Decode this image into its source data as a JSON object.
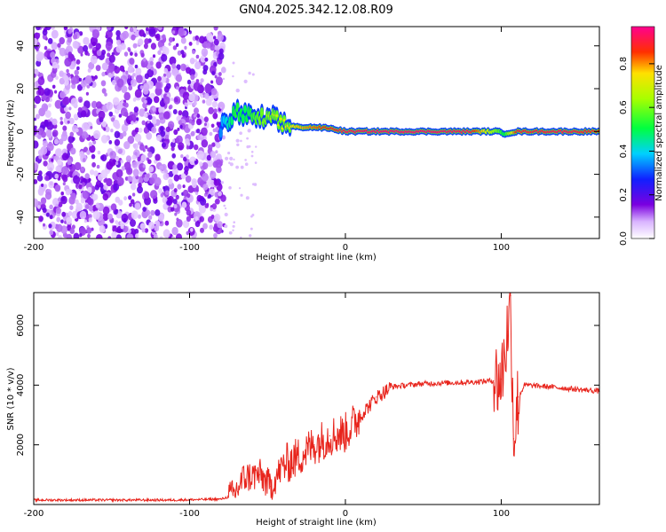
{
  "figure_title": "GN04.2025.342.12.08.R09",
  "chart_data": [
    {
      "type": "heatmap",
      "title": "GN04.2025.342.12.08.R09",
      "xlabel": "Height of straight line (km)",
      "ylabel": "Frequency (Hz)",
      "xlim": [
        -200,
        163
      ],
      "ylim": [
        -50,
        49
      ],
      "x_ticks": [
        -200,
        -100,
        0,
        100
      ],
      "x_tick_labels": [
        "-200",
        "-100",
        "0",
        "100"
      ],
      "y_ticks": [
        -40,
        -20,
        0,
        20,
        40
      ],
      "y_tick_labels": [
        "-40",
        "-20",
        "0",
        "20",
        "40"
      ],
      "noise_region_x": [
        -200,
        -80
      ],
      "signal_start_x": -80,
      "frequency_trace": [
        {
          "x": -80,
          "y": 1,
          "amp": 0.35
        },
        {
          "x": -75,
          "y": 5,
          "amp": 0.45
        },
        {
          "x": -70,
          "y": 9,
          "amp": 0.55
        },
        {
          "x": -65,
          "y": 8,
          "amp": 0.5
        },
        {
          "x": -60,
          "y": 6,
          "amp": 0.55
        },
        {
          "x": -55,
          "y": 6,
          "amp": 0.6
        },
        {
          "x": -50,
          "y": 6,
          "amp": 0.65
        },
        {
          "x": -45,
          "y": 5,
          "amp": 0.7
        },
        {
          "x": -40,
          "y": 3,
          "amp": 0.75
        },
        {
          "x": -30,
          "y": 2,
          "amp": 0.8
        },
        {
          "x": -20,
          "y": 2,
          "amp": 0.85
        },
        {
          "x": -10,
          "y": 1.5,
          "amp": 0.9
        },
        {
          "x": 0,
          "y": 0,
          "amp": 0.95
        },
        {
          "x": 20,
          "y": 0,
          "amp": 0.97
        },
        {
          "x": 50,
          "y": 0,
          "amp": 0.97
        },
        {
          "x": 80,
          "y": 0,
          "amp": 0.95
        },
        {
          "x": 98,
          "y": 0,
          "amp": 0.6
        },
        {
          "x": 102,
          "y": -1,
          "amp": 0.5
        },
        {
          "x": 110,
          "y": 0,
          "amp": 0.92
        },
        {
          "x": 140,
          "y": 0,
          "amp": 0.95
        },
        {
          "x": 163,
          "y": 0,
          "amp": 0.9
        }
      ],
      "colorbar": {
        "label": "Normalized spectral amplitude",
        "ticks": [
          0.0,
          0.2,
          0.4,
          0.6,
          0.8
        ],
        "tick_labels": [
          "0.0",
          "0.2",
          "0.4",
          "0.6",
          "0.8"
        ],
        "range": [
          0,
          0.97
        ]
      }
    },
    {
      "type": "line",
      "xlabel": "Height of straight line (km)",
      "ylabel": "SNR (10 * v/v)",
      "xlim": [
        -200,
        163
      ],
      "ylim": [
        0,
        7100
      ],
      "x_ticks": [
        -200,
        -100,
        0,
        100
      ],
      "x_tick_labels": [
        "-200",
        "-100",
        "0",
        "100"
      ],
      "y_ticks": [
        2000,
        4000,
        6000
      ],
      "y_tick_labels": [
        "2000",
        "4000",
        "6000"
      ],
      "series": [
        {
          "name": "SNR",
          "color": "#e8241c",
          "points": [
            {
              "x": -200,
              "y": 150
            },
            {
              "x": -150,
              "y": 150
            },
            {
              "x": -110,
              "y": 150
            },
            {
              "x": -80,
              "y": 180
            },
            {
              "x": -72,
              "y": 300
            },
            {
              "x": -65,
              "y": 900
            },
            {
              "x": -55,
              "y": 1000
            },
            {
              "x": -48,
              "y": 600
            },
            {
              "x": -40,
              "y": 1300
            },
            {
              "x": -30,
              "y": 1600
            },
            {
              "x": -20,
              "y": 2000
            },
            {
              "x": -10,
              "y": 2300
            },
            {
              "x": 0,
              "y": 2400
            },
            {
              "x": 10,
              "y": 3000
            },
            {
              "x": 20,
              "y": 3600
            },
            {
              "x": 30,
              "y": 3950
            },
            {
              "x": 50,
              "y": 4050
            },
            {
              "x": 80,
              "y": 4100
            },
            {
              "x": 95,
              "y": 4150
            },
            {
              "x": 100,
              "y": 4200
            },
            {
              "x": 104,
              "y": 5800
            },
            {
              "x": 106,
              "y": 7000
            },
            {
              "x": 108,
              "y": 2200
            },
            {
              "x": 111,
              "y": 3600
            },
            {
              "x": 115,
              "y": 4000
            },
            {
              "x": 130,
              "y": 3950
            },
            {
              "x": 150,
              "y": 3850
            },
            {
              "x": 163,
              "y": 3800
            }
          ]
        }
      ]
    }
  ]
}
